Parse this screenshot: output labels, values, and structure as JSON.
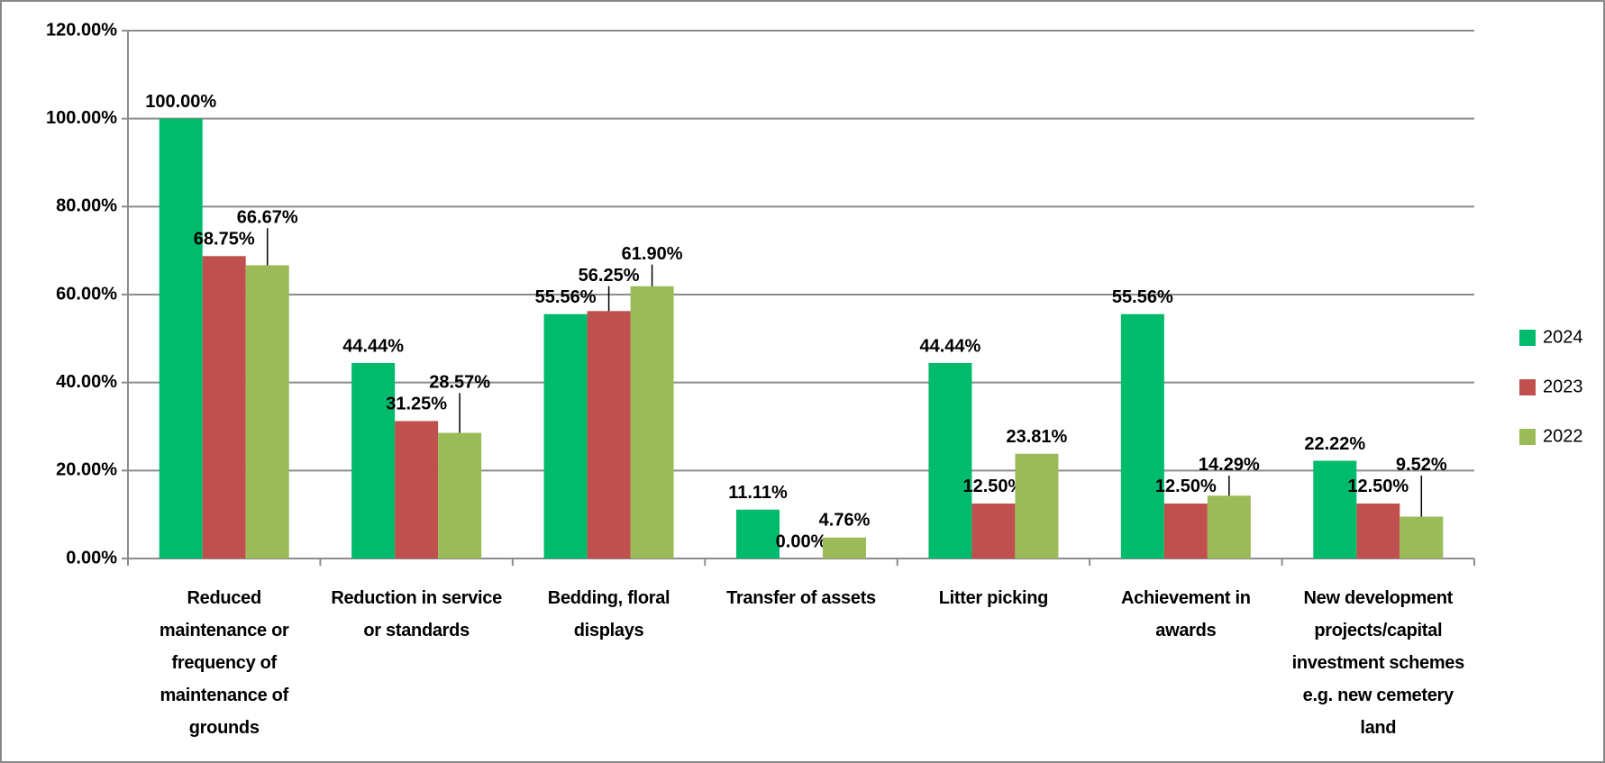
{
  "chart_data": {
    "type": "bar",
    "categories": [
      "Reduced maintenance or frequency of maintenance of grounds",
      "Reduction in service or standards",
      "Bedding, floral displays",
      "Transfer of assets",
      "Litter picking",
      "Achievement in awards",
      "New development projects/capital investment schemes e.g. new cemetery land"
    ],
    "series": [
      {
        "name": "2024",
        "color": "#00bb6c",
        "values": [
          100,
          44.44,
          55.56,
          11.11,
          44.44,
          55.56,
          22.22
        ],
        "value_labels": [
          "100.00%",
          "44.44%",
          "55.56%",
          "11.11%",
          "44.44%",
          "55.56%",
          "22.22%"
        ]
      },
      {
        "name": "2023",
        "color": "#c0504d",
        "values": [
          68.75,
          31.25,
          56.25,
          0,
          12.5,
          12.5,
          12.5
        ],
        "value_labels": [
          "68.75%",
          "31.25%",
          "56.25%",
          "0.00%",
          "12.50%",
          "12.50%",
          "12.50%"
        ]
      },
      {
        "name": "2022",
        "color": "#9bbb59",
        "values": [
          66.67,
          28.57,
          61.9,
          4.76,
          23.81,
          14.29,
          9.52
        ],
        "value_labels": [
          "66.67%",
          "28.57%",
          "61.90%",
          "4.76%",
          "23.81%",
          "14.29%",
          "9.52%"
        ]
      }
    ],
    "ylim": [
      0,
      120
    ],
    "yticks": [
      {
        "value": 0,
        "label": "0.00%"
      },
      {
        "value": 20,
        "label": "20.00%"
      },
      {
        "value": 40,
        "label": "40.00%"
      },
      {
        "value": 60,
        "label": "60.00%"
      },
      {
        "value": 80,
        "label": "80.00%"
      },
      {
        "value": 100,
        "label": "100.00%"
      },
      {
        "value": 120,
        "label": "120.00%"
      }
    ],
    "grid": true,
    "legend": "right"
  }
}
